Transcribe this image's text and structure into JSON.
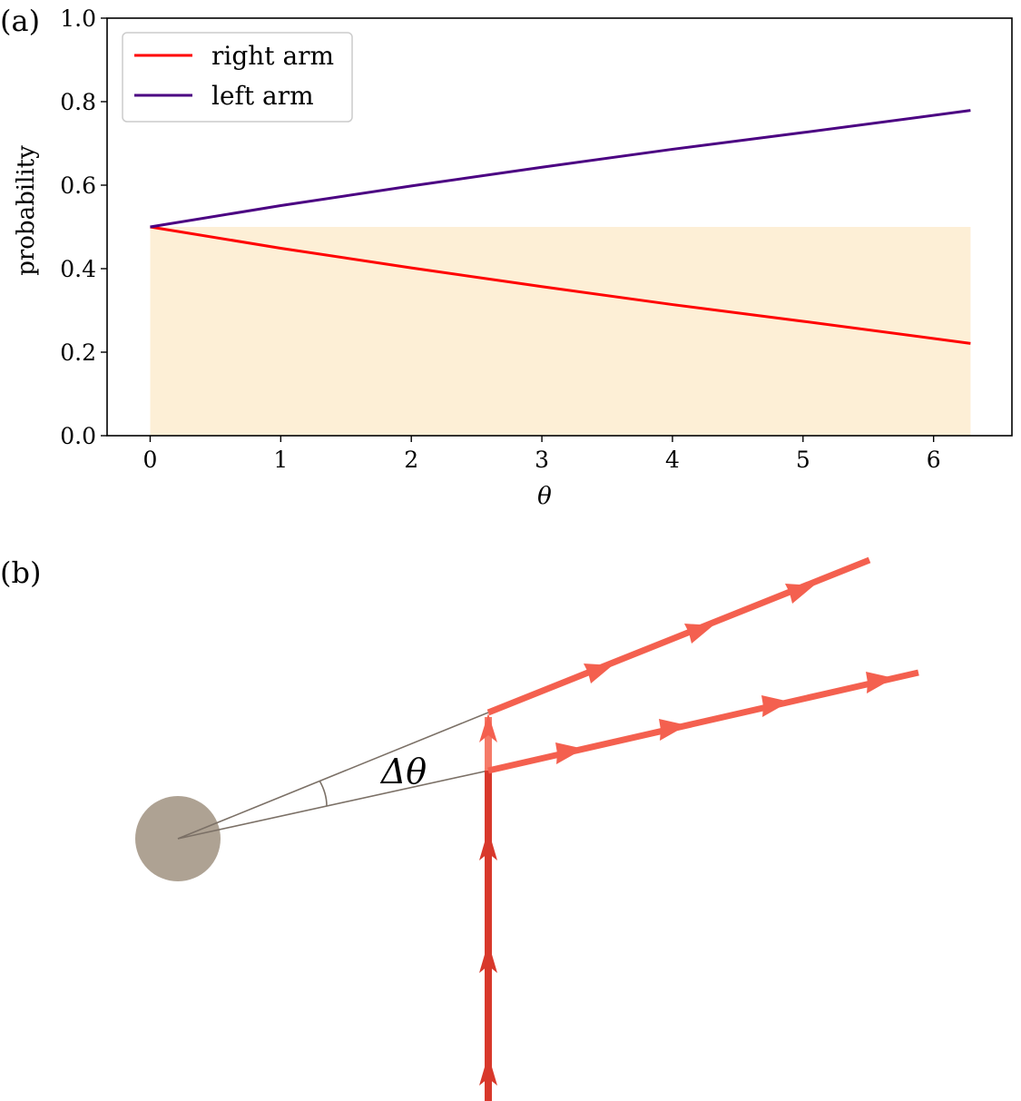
{
  "panel_a": {
    "label": "(a)"
  },
  "panel_b": {
    "label": "(b)",
    "angle_label": "Δθ"
  },
  "colors": {
    "right_arm": "#ff0000",
    "left_arm": "#4b0082",
    "shade": "#fdefd6",
    "ray": "#f4604f",
    "ray_incoming": "#d8382b",
    "ray_stub": "#f57a68",
    "body": "#aea293",
    "construction_line": "#7b7066"
  },
  "chart_data": {
    "type": "line",
    "title": "",
    "xlabel": "θ",
    "ylabel": "probability",
    "xlim": [
      -0.33,
      6.6
    ],
    "ylim": [
      0.0,
      1.0
    ],
    "xticks": [
      "0",
      "1",
      "2",
      "3",
      "4",
      "5",
      "6"
    ],
    "yticks": [
      "0.0",
      "0.2",
      "0.4",
      "0.6",
      "0.8",
      "1.0"
    ],
    "grid": false,
    "legend": "top-left",
    "shaded_region": {
      "x": [
        0,
        6.283
      ],
      "y": [
        0,
        0.5
      ]
    },
    "series": [
      {
        "name": "right arm",
        "x": [
          0,
          1,
          2,
          3,
          4,
          5,
          6.283
        ],
        "y": [
          0.5,
          0.449,
          0.402,
          0.357,
          0.314,
          0.274,
          0.221
        ]
      },
      {
        "name": "left arm",
        "x": [
          0,
          1,
          2,
          3,
          4,
          5,
          6.283
        ],
        "y": [
          0.5,
          0.551,
          0.598,
          0.643,
          0.686,
          0.726,
          0.779
        ]
      }
    ]
  }
}
